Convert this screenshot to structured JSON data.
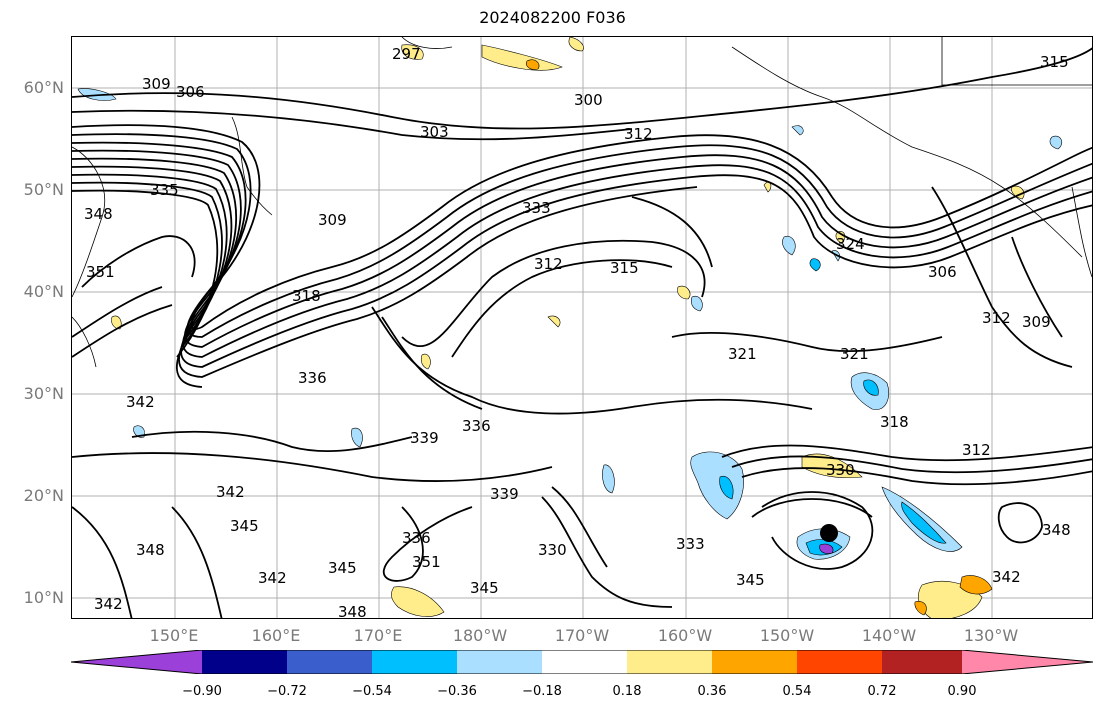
{
  "title": "2024082200 F036",
  "lat_labels": [
    "60°N",
    "50°N",
    "40°N",
    "30°N",
    "20°N",
    "10°N"
  ],
  "lon_labels": [
    "150°E",
    "160°E",
    "170°E",
    "180°W",
    "170°W",
    "160°W",
    "150°W",
    "140°W",
    "130°W"
  ],
  "colorbar": {
    "ticks": [
      "−0.90",
      "−0.72",
      "−0.54",
      "−0.36",
      "−0.18",
      "0.18",
      "0.36",
      "0.54",
      "0.72",
      "0.90"
    ],
    "colors": [
      "#9b40d8",
      "#00008b",
      "#3a5fcd",
      "#00bfff",
      "#aadfff",
      "#ffffff",
      "#ffec8b",
      "#ffa500",
      "#ff4500",
      "#b22222",
      "#ff88aa"
    ]
  },
  "contour_labels": [
    "297",
    "309",
    "306",
    "300",
    "303",
    "312",
    "315",
    "333",
    "309",
    "318",
    "312",
    "315",
    "324",
    "306",
    "312",
    "309",
    "348",
    "351",
    "335",
    "342",
    "336",
    "339",
    "336",
    "321",
    "321",
    "318",
    "312",
    "339",
    "342",
    "345",
    "348",
    "342",
    "336",
    "330",
    "333",
    "345",
    "345",
    "348",
    "342",
    "345",
    "342",
    "348",
    "351",
    "330"
  ]
}
